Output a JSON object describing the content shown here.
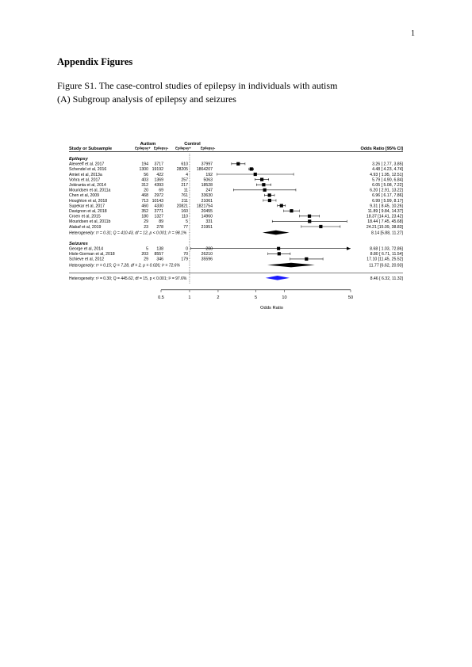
{
  "page": {
    "number": "1",
    "heading": "Appendix Figures",
    "caption_line1": "Figure S1. The case-control studies of epilepsy in individuals with autism",
    "caption_line2": "(A) Subgroup analysis of epilepsy and seizures"
  },
  "chart_data": {
    "type": "forest",
    "header": {
      "study_label": "Study or Subsample",
      "autism_label": "Autism",
      "control_label": "Control",
      "sub_cols": [
        "Epilepsy+",
        "Epilepsy-",
        "Epilepsy+",
        "Epilepsy-"
      ],
      "effect_label": "Odds Ratio [95% CI]"
    },
    "xlabel": "Odds Ratio",
    "x_scale": "log",
    "xlim": [
      0.5,
      50
    ],
    "x_ticks": [
      "0.5",
      "1",
      "2",
      "5",
      "10",
      "50"
    ],
    "x_tick_values": [
      0.5,
      1,
      2,
      5,
      10,
      50
    ],
    "reference_line": 1,
    "subgroups": [
      {
        "name": "Epilepsy",
        "studies": [
          {
            "study": "Alexeeff et al. 2017",
            "cells": [
              "194",
              "3717",
              "610",
              "37997"
            ],
            "or": 3.26,
            "lo": 2.77,
            "hi": 3.85,
            "ci_text": "3.26 [ 2.77,  3.85]"
          },
          {
            "study": "Schendel et al, 2016",
            "cells": [
              "1300",
              "19192",
              "28205",
              "1864207"
            ],
            "or": 4.48,
            "lo": 4.23,
            "hi": 4.74,
            "ci_text": "4.48 [ 4.23,  4.74]"
          },
          {
            "study": "Amiet et al, 2013a",
            "cells": [
              "56",
              "422",
              "4",
              "192"
            ],
            "or": 4.93,
            "lo": 1.95,
            "hi": 12.51,
            "ci_text": "4.93 [ 1.95, 12.51]"
          },
          {
            "study": "Vohra et al, 2017",
            "cells": [
              "403",
              "1369",
              "257",
              "5063"
            ],
            "or": 5.79,
            "lo": 4.9,
            "hi": 6.84,
            "ci_text": "5.79 [ 4.90,  6.84]"
          },
          {
            "study": "Jokiranta et al, 2014",
            "cells": [
              "312",
              "4393",
              "217",
              "18528"
            ],
            "or": 6.05,
            "lo": 5.08,
            "hi": 7.22,
            "ci_text": "6.05 [ 5.08,  7.22]"
          },
          {
            "study": "Mouridsen et al, 2011a",
            "cells": [
              "20",
              "69",
              "11",
              "247"
            ],
            "or": 6.2,
            "lo": 2.91,
            "hi": 13.22,
            "ci_text": "6.20 [ 2.91, 13.22]"
          },
          {
            "study": "Chen et al, 2009",
            "cells": [
              "468",
              "2972",
              "761",
              "33630"
            ],
            "or": 6.96,
            "lo": 6.17,
            "hi": 7.86,
            "ci_text": "6.96 [ 6.17,  7.86]"
          },
          {
            "study": "Houghton et al, 2018",
            "cells": [
              "713",
              "10143",
              "211",
              "21061"
            ],
            "or": 6.99,
            "lo": 5.99,
            "hi": 8.17,
            "ci_text": "6.99 [ 5.99,  8.17]"
          },
          {
            "study": "Supekar et al, 2017",
            "cells": [
              "460",
              "4330",
              "20821",
              "1821754"
            ],
            "or": 9.31,
            "lo": 8.45,
            "hi": 10.26,
            "ci_text": "9.31 [ 8.45, 10.26]"
          },
          {
            "study": "Davignon et al, 2018",
            "cells": [
              "352",
              "3771",
              "160",
              "20455"
            ],
            "or": 11.89,
            "lo": 9.84,
            "hi": 14.37,
            "ci_text": "11.89 [ 9.84, 14.37]"
          },
          {
            "study": "Croen et al, 2015",
            "cells": [
              "180",
              "1327",
              "110",
              "14960"
            ],
            "or": 18.37,
            "lo": 14.41,
            "hi": 23.42,
            "ci_text": "18.37 [14.41, 23.42]"
          },
          {
            "study": "Mouridsen et al, 2011b",
            "cells": [
              "29",
              "89",
              "5",
              "331"
            ],
            "or": 18.44,
            "lo": 7.45,
            "hi": 45.68,
            "ci_text": "18.44 [ 7.45, 45.68]"
          },
          {
            "study": "Alabaf et al, 2019",
            "cells": [
              "23",
              "278",
              "77",
              "21951"
            ],
            "or": 24.21,
            "lo": 15.09,
            "hi": 38.83,
            "ci_text": "24.21 [15.09, 38.83]"
          }
        ],
        "heterogeneity": "Heterogeneity: τ² = 0.31; Q = 410.43, df = 12, p < 0.001; I² = 98.1%",
        "pooled": {
          "or": 8.14,
          "lo": 5.88,
          "hi": 11.27,
          "ci_text": "8.14 [5.88, 11.27]"
        }
      },
      {
        "name": "Seizures",
        "studies": [
          {
            "study": "George et al, 2014",
            "cells": [
              "5",
              "138",
              "0",
              "200"
            ],
            "or": 8.68,
            "lo": 1.03,
            "hi": 72.86,
            "ci_text": "8.68 [ 1.03, 72.86]"
          },
          {
            "study": "Hisle-Gorman et al, 2018",
            "cells": [
              "203",
              "8557",
              "70",
              "26210"
            ],
            "or": 8.8,
            "lo": 6.71,
            "hi": 11.54,
            "ci_text": "8.80 [ 6.71, 11.54]"
          },
          {
            "study": "Schieve et al, 2012",
            "cells": [
              "29",
              "346",
              "179",
              "35596"
            ],
            "or": 17.1,
            "lo": 11.45,
            "hi": 25.52,
            "ci_text": "17.10 [11.45, 25.52]"
          }
        ],
        "heterogeneity": "Heterogeneity: τ² = 0.15; Q = 7.28, df = 2, p = 0.026; I² = 72.6%",
        "pooled": {
          "or": 11.77,
          "lo": 6.62,
          "hi": 20.93,
          "ci_text": "11.77 [6.62, 20.93]"
        }
      }
    ],
    "overall": {
      "heterogeneity": "Heterogeneity: τ² = 0.30; Q = 445.62, df = 15, p < 0.001; I² = 97.6%",
      "or": 8.46,
      "lo": 6.32,
      "hi": 11.32,
      "ci_text": "8.46 [ 6.32, 11.32]",
      "color": "#1a1aff"
    }
  }
}
